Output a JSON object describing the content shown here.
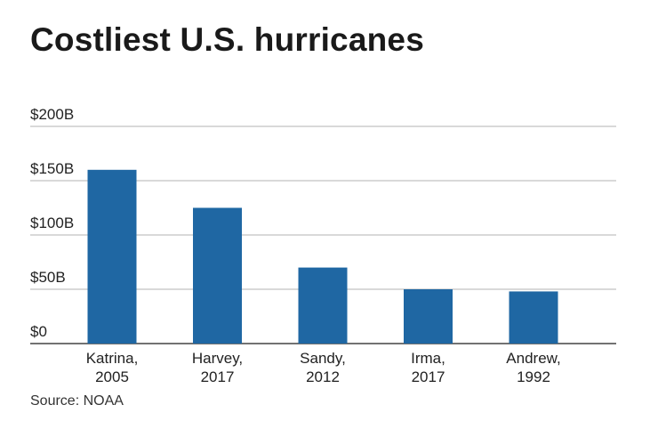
{
  "title": "Costliest U.S. hurricanes",
  "source": "Source: NOAA",
  "colors": {
    "bar": "#1f67a3",
    "grid": "#b3b3b3",
    "axis": "#444444",
    "text": "#222222"
  },
  "chart_data": {
    "type": "bar",
    "title": "Costliest U.S. hurricanes",
    "xlabel": "",
    "ylabel": "",
    "ylim": [
      0,
      200
    ],
    "grid": true,
    "y_ticks": [
      {
        "value": 0,
        "label": "$0"
      },
      {
        "value": 50,
        "label": "$50B"
      },
      {
        "value": 100,
        "label": "$100B"
      },
      {
        "value": 150,
        "label": "$150B"
      },
      {
        "value": 200,
        "label": "$200B"
      }
    ],
    "categories": [
      [
        "Katrina,",
        "2005"
      ],
      [
        "Harvey,",
        "2017"
      ],
      [
        "Sandy,",
        "2012"
      ],
      [
        "Irma,",
        "2017"
      ],
      [
        "Andrew,",
        "1992"
      ]
    ],
    "values": [
      160,
      125,
      70,
      50,
      48
    ]
  }
}
